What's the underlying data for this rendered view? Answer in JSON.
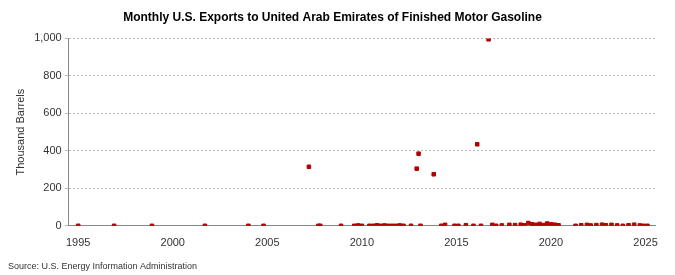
{
  "chart_data": {
    "type": "scatter",
    "title": "Monthly U.S. Exports to United Arab Emirates of Finished Motor Gasoline",
    "y_label": "Thousand Barrels",
    "source": "Source: U.S. Energy Information Administration",
    "x": [
      1995.0,
      1996.9,
      1998.9,
      2001.7,
      2004.0,
      2004.8,
      2007.2,
      2007.7,
      2007.8,
      2008.9,
      2009.6,
      2009.8,
      2010.0,
      2010.4,
      2010.6,
      2010.8,
      2011.0,
      2011.2,
      2011.4,
      2011.6,
      2011.8,
      2012.0,
      2012.2,
      2012.6,
      2012.9,
      2013.0,
      2013.1,
      2013.8,
      2014.2,
      2014.4,
      2014.9,
      2015.1,
      2015.5,
      2015.9,
      2016.1,
      2016.3,
      2016.7,
      2016.9,
      2017.1,
      2017.4,
      2017.8,
      2018.1,
      2018.4,
      2018.6,
      2018.8,
      2019.0,
      2019.2,
      2019.4,
      2019.6,
      2019.8,
      2020.0,
      2020.2,
      2020.4,
      2021.3,
      2021.6,
      2021.9,
      2022.1,
      2022.4,
      2022.7,
      2022.9,
      2023.2,
      2023.5,
      2023.8,
      2024.1,
      2024.4,
      2024.7,
      2024.9,
      2025.1
    ],
    "values": [
      0,
      0,
      0,
      0,
      0,
      0,
      315,
      0,
      0,
      0,
      0,
      2,
      0,
      0,
      0,
      3,
      0,
      2,
      0,
      0,
      0,
      2,
      0,
      0,
      305,
      385,
      0,
      275,
      0,
      5,
      0,
      0,
      3,
      0,
      435,
      0,
      995,
      5,
      0,
      2,
      5,
      4,
      6,
      3,
      15,
      8,
      5,
      10,
      4,
      12,
      8,
      6,
      3,
      0,
      3,
      5,
      2,
      4,
      6,
      3,
      5,
      2,
      0,
      3,
      6,
      2,
      0,
      0
    ],
    "color": "#b30000",
    "marker": "square",
    "xlim": [
      1994.5,
      2025.5
    ],
    "xticks": [
      1995,
      2000,
      2005,
      2010,
      2015,
      2020,
      2025
    ],
    "ylim": [
      0,
      1000
    ],
    "yticks": [
      0,
      200,
      400,
      600,
      800,
      {
        "value": 1000,
        "label": "1,000"
      }
    ],
    "grid": true
  }
}
